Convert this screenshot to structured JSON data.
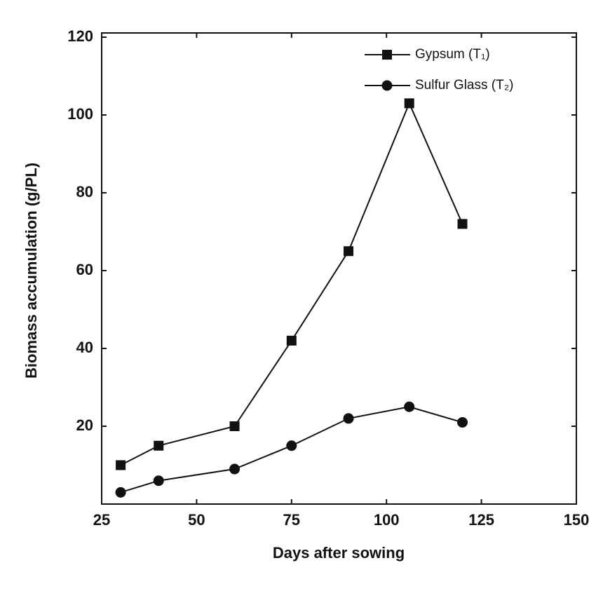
{
  "chart_data": {
    "type": "line",
    "x_label": "Days after sowing",
    "y_label": "Biomass accumulation (g/PL)",
    "x": [
      30,
      40,
      60,
      75,
      90,
      106,
      120
    ],
    "series": [
      {
        "name": "Gypsum (T₁)",
        "color": "#111111",
        "marker": "square",
        "values": [
          10,
          15,
          20,
          42,
          65,
          103,
          72
        ]
      },
      {
        "name": "Sulfur Glass (T₂)",
        "color": "#111111",
        "marker": "circle",
        "values": [
          3,
          6,
          9,
          15,
          22,
          25,
          21
        ]
      }
    ],
    "xlim": [
      25,
      150
    ],
    "xticks": [
      25,
      50,
      75,
      100,
      125,
      150
    ],
    "ylim": [
      0,
      120
    ],
    "yticks": [
      20,
      40,
      60,
      80,
      100,
      120
    ],
    "legend": "upper right"
  }
}
